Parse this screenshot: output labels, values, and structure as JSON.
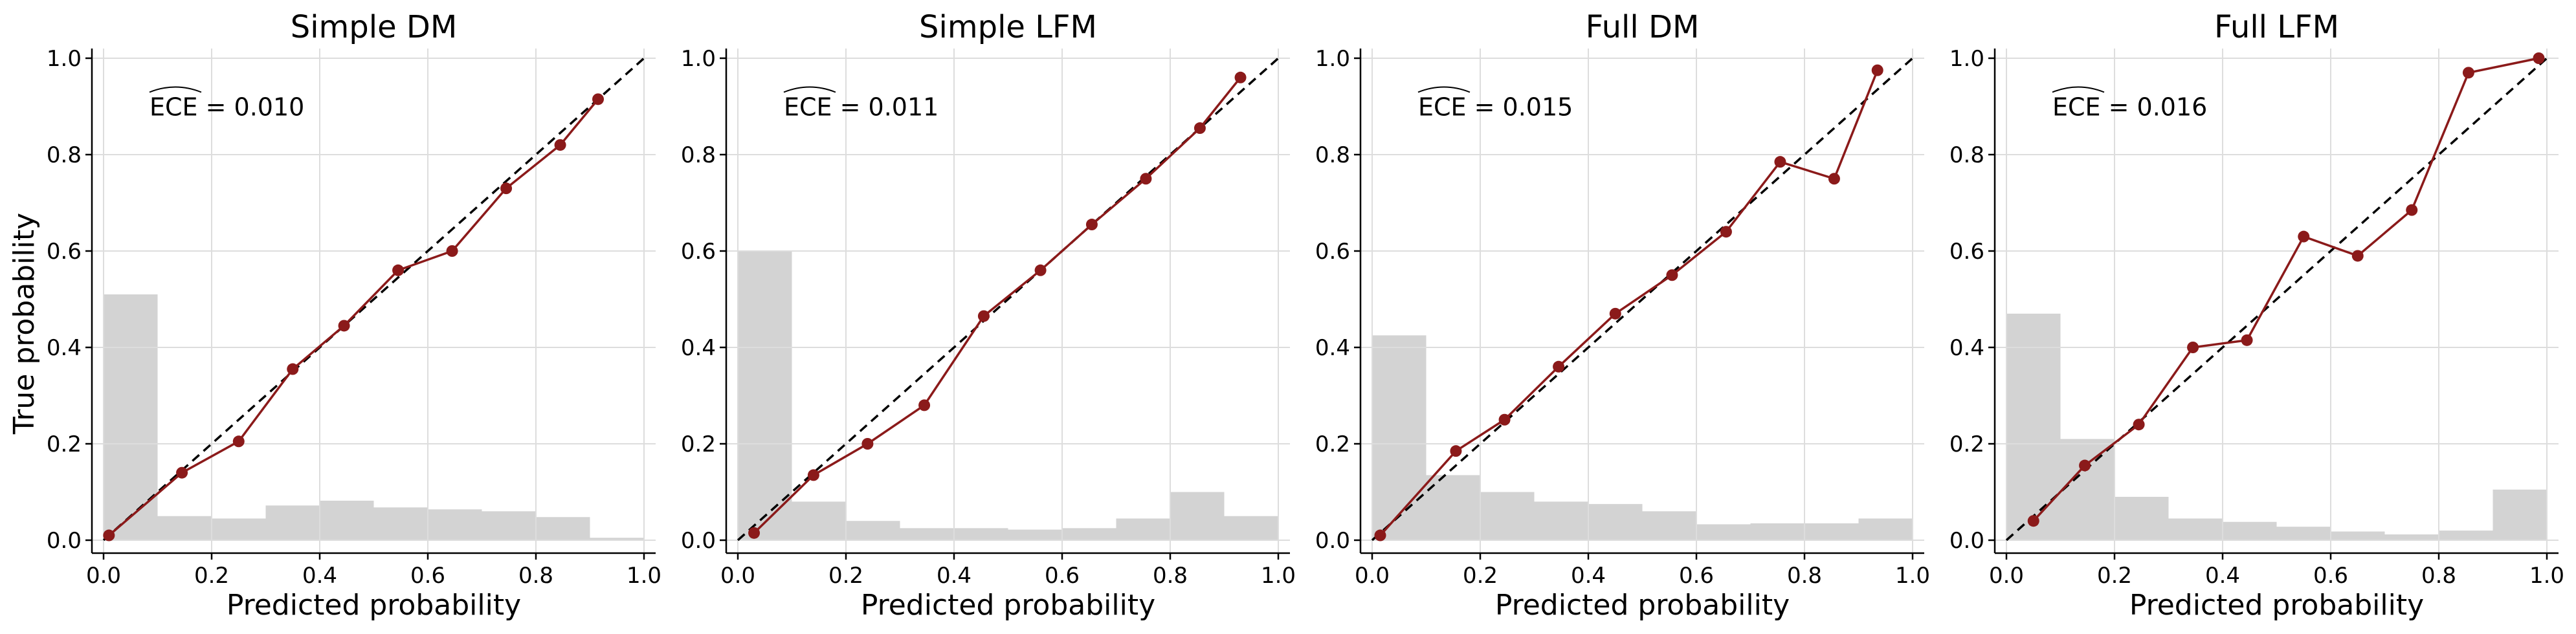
{
  "figure": {
    "ylabel": "True probability",
    "xlabel": "Predicted probability"
  },
  "colors": {
    "calibration_line": "#8b1a1a",
    "marker": "#8b1a1a",
    "diagonal": "#000000",
    "histogram": "#d3d3d3",
    "grid": "#dddddd"
  },
  "chart_data": [
    {
      "type": "line",
      "title": "Simple DM",
      "ece_text": "ECE = 0.010",
      "xlabel": "Predicted probability",
      "ylabel": "True probability",
      "xlim": [
        0,
        1
      ],
      "ylim": [
        0,
        1
      ],
      "xticks": [
        "0.0",
        "0.2",
        "0.4",
        "0.6",
        "0.8",
        "1.0"
      ],
      "yticks": [
        "0.0",
        "0.2",
        "0.4",
        "0.6",
        "0.8",
        "1.0"
      ],
      "grid": true,
      "diagonal": true,
      "x": [
        0.01,
        0.145,
        0.25,
        0.35,
        0.445,
        0.545,
        0.645,
        0.745,
        0.845,
        0.915
      ],
      "y": [
        0.01,
        0.14,
        0.205,
        0.355,
        0.445,
        0.56,
        0.6,
        0.73,
        0.82,
        0.915
      ],
      "histogram": {
        "bin_edges": [
          0,
          0.1,
          0.2,
          0.3,
          0.4,
          0.5,
          0.6,
          0.7,
          0.8,
          0.9,
          1.0
        ],
        "heights": [
          0.51,
          0.05,
          0.045,
          0.072,
          0.082,
          0.068,
          0.064,
          0.06,
          0.048,
          0.005
        ]
      }
    },
    {
      "type": "line",
      "title": "Simple LFM",
      "ece_text": "ECE = 0.011",
      "xlabel": "Predicted probability",
      "ylabel": "",
      "xlim": [
        0,
        1
      ],
      "ylim": [
        0,
        1
      ],
      "xticks": [
        "0.0",
        "0.2",
        "0.4",
        "0.6",
        "0.8",
        "1.0"
      ],
      "yticks": [
        "0.0",
        "0.2",
        "0.4",
        "0.6",
        "0.8",
        "1.0"
      ],
      "grid": true,
      "diagonal": true,
      "x": [
        0.03,
        0.14,
        0.24,
        0.345,
        0.455,
        0.56,
        0.655,
        0.755,
        0.855,
        0.93
      ],
      "y": [
        0.015,
        0.135,
        0.2,
        0.28,
        0.465,
        0.56,
        0.655,
        0.75,
        0.855,
        0.96
      ],
      "histogram": {
        "bin_edges": [
          0,
          0.1,
          0.2,
          0.3,
          0.4,
          0.5,
          0.6,
          0.7,
          0.8,
          0.9,
          1.0
        ],
        "heights": [
          0.6,
          0.08,
          0.04,
          0.025,
          0.025,
          0.022,
          0.025,
          0.045,
          0.1,
          0.05
        ]
      }
    },
    {
      "type": "line",
      "title": "Full DM",
      "ece_text": "ECE = 0.015",
      "xlabel": "Predicted probability",
      "ylabel": "",
      "xlim": [
        0,
        1
      ],
      "ylim": [
        0,
        1
      ],
      "xticks": [
        "0.0",
        "0.2",
        "0.4",
        "0.6",
        "0.8",
        "1.0"
      ],
      "yticks": [
        "0.0",
        "0.2",
        "0.4",
        "0.6",
        "0.8",
        "1.0"
      ],
      "grid": true,
      "diagonal": true,
      "x": [
        0.015,
        0.155,
        0.245,
        0.345,
        0.45,
        0.555,
        0.655,
        0.755,
        0.855,
        0.935
      ],
      "y": [
        0.01,
        0.185,
        0.25,
        0.36,
        0.47,
        0.55,
        0.64,
        0.785,
        0.75,
        0.975
      ],
      "histogram": {
        "bin_edges": [
          0,
          0.1,
          0.2,
          0.3,
          0.4,
          0.5,
          0.6,
          0.7,
          0.8,
          0.9,
          1.0
        ],
        "heights": [
          0.425,
          0.135,
          0.1,
          0.08,
          0.075,
          0.06,
          0.033,
          0.035,
          0.035,
          0.045
        ]
      }
    },
    {
      "type": "line",
      "title": "Full LFM",
      "ece_text": "ECE = 0.016",
      "xlabel": "Predicted probability",
      "ylabel": "",
      "xlim": [
        0,
        1
      ],
      "ylim": [
        0,
        1
      ],
      "xticks": [
        "0.0",
        "0.2",
        "0.4",
        "0.6",
        "0.8",
        "1.0"
      ],
      "yticks": [
        "0.0",
        "0.2",
        "0.4",
        "0.6",
        "0.8",
        "1.0"
      ],
      "grid": true,
      "diagonal": true,
      "x": [
        0.05,
        0.145,
        0.245,
        0.345,
        0.445,
        0.55,
        0.65,
        0.75,
        0.855,
        0.985
      ],
      "y": [
        0.04,
        0.155,
        0.24,
        0.4,
        0.415,
        0.63,
        0.59,
        0.685,
        0.97,
        1.0
      ],
      "histogram": {
        "bin_edges": [
          0,
          0.1,
          0.2,
          0.3,
          0.4,
          0.5,
          0.6,
          0.7,
          0.8,
          0.9,
          1.0
        ],
        "heights": [
          0.47,
          0.21,
          0.09,
          0.045,
          0.038,
          0.028,
          0.018,
          0.012,
          0.02,
          0.105
        ]
      }
    }
  ]
}
